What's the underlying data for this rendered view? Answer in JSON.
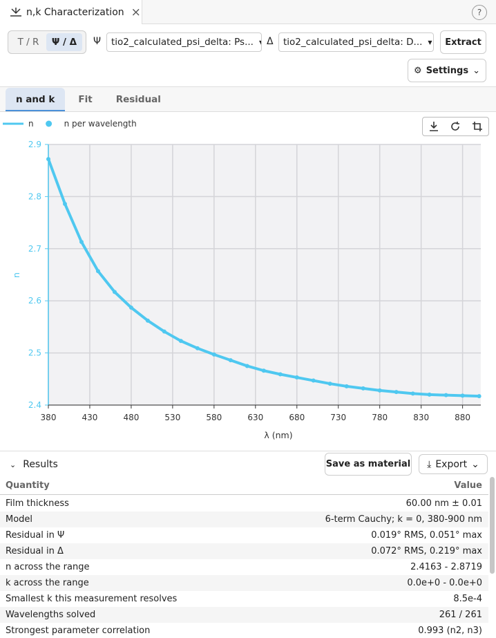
{
  "tab": {
    "title": "n,k Characterization",
    "close": "×"
  },
  "help": "?",
  "toolbar": {
    "modes": [
      "T / R",
      "Ψ / Δ"
    ],
    "active_mode": 1,
    "psi_label": "Ψ",
    "psi_select": "tio2_calculated_psi_delta: Ps...",
    "delta_label": "Δ",
    "delta_select": "tio2_calculated_psi_delta: D...",
    "extract": "Extract",
    "settings": "Settings"
  },
  "view_tabs": {
    "items": [
      "n and k",
      "Fit",
      "Residual"
    ],
    "active": 0
  },
  "chart_data": {
    "type": "line",
    "xlabel": "λ (nm)",
    "ylabel": "n",
    "x": [
      380,
      400,
      420,
      440,
      460,
      480,
      500,
      520,
      540,
      560,
      580,
      600,
      620,
      640,
      660,
      680,
      700,
      720,
      740,
      760,
      780,
      800,
      820,
      840,
      860,
      880,
      900
    ],
    "series": [
      {
        "name": "n",
        "color": "#4fc8f0",
        "mode": "line",
        "values": [
          2.872,
          2.786,
          2.713,
          2.657,
          2.617,
          2.587,
          2.562,
          2.541,
          2.523,
          2.509,
          2.497,
          2.486,
          2.475,
          2.466,
          2.459,
          2.453,
          2.447,
          2.441,
          2.436,
          2.432,
          2.428,
          2.425,
          2.422,
          2.42,
          2.419,
          2.418,
          2.417
        ]
      },
      {
        "name": "n per wavelength",
        "color": "#4fc8f0",
        "mode": "markers",
        "values": [
          2.872,
          2.786,
          2.713,
          2.657,
          2.617,
          2.587,
          2.562,
          2.541,
          2.523,
          2.509,
          2.497,
          2.486,
          2.475,
          2.466,
          2.459,
          2.453,
          2.447,
          2.441,
          2.436,
          2.432,
          2.428,
          2.425,
          2.422,
          2.42,
          2.419,
          2.418,
          2.417
        ]
      }
    ],
    "xlim": [
      380,
      902
    ],
    "ylim": [
      2.4,
      2.9
    ],
    "xticks": [
      380,
      430,
      480,
      530,
      580,
      630,
      680,
      730,
      780,
      830,
      880
    ],
    "yticks": [
      2.4,
      2.5,
      2.6,
      2.7,
      2.8,
      2.9
    ],
    "grid": true
  },
  "results": {
    "title": "Results",
    "save": "Save as material",
    "export": "Export",
    "columns": [
      "Quantity",
      "Value"
    ],
    "rows": [
      [
        "Film thickness",
        "60.00 nm ± 0.01"
      ],
      [
        "Model",
        "6-term Cauchy; k = 0, 380-900 nm"
      ],
      [
        "Residual in Ψ",
        "0.019° RMS, 0.051° max"
      ],
      [
        "Residual in Δ",
        "0.072° RMS, 0.219° max"
      ],
      [
        "n across the range",
        "2.4163 - 2.8719"
      ],
      [
        "k across the range",
        "0.0e+0 - 0.0e+0"
      ],
      [
        "Smallest k this measurement resolves",
        "8.5e-4"
      ],
      [
        "Wavelengths solved",
        "261 / 261"
      ],
      [
        "Strongest parameter correlation",
        "0.993 (n2, n3)"
      ]
    ]
  }
}
